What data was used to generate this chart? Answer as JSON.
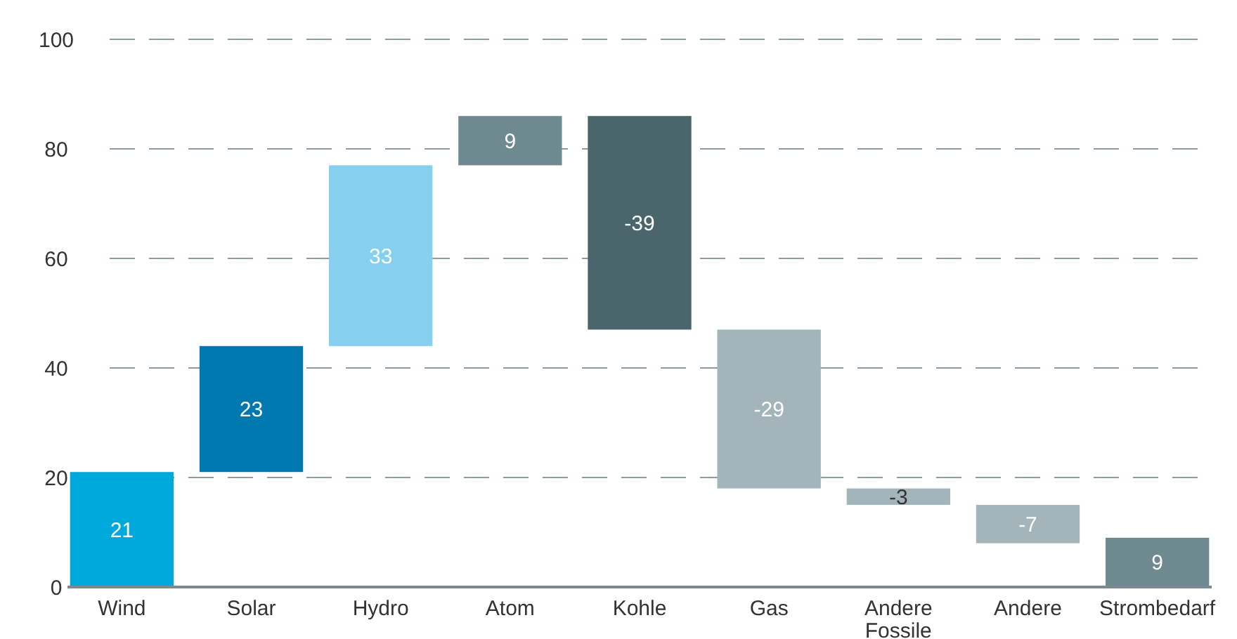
{
  "chart_data": {
    "type": "bar",
    "categories": [
      "Wind",
      "Solar",
      "Hydro",
      "Atom",
      "Kohle",
      "Gas",
      "Andere Fossile",
      "Andere",
      "Strombedarf"
    ],
    "values": [
      21,
      23,
      33,
      9,
      -39,
      -29,
      -3,
      -7,
      9
    ],
    "base": [
      0,
      21,
      44,
      77,
      86,
      47,
      18,
      15,
      0
    ],
    "colors": [
      "#00a9dc",
      "#0079b0",
      "#86cfee",
      "#6e8a90",
      "#4a656b",
      "#a3b5ba",
      "#a3b5ba",
      "#a3b5ba",
      "#6e8a90"
    ],
    "ylim": [
      0,
      100
    ],
    "yticks": [
      0,
      20,
      40,
      60,
      80,
      100
    ],
    "grid": "y",
    "data_labels": true
  }
}
